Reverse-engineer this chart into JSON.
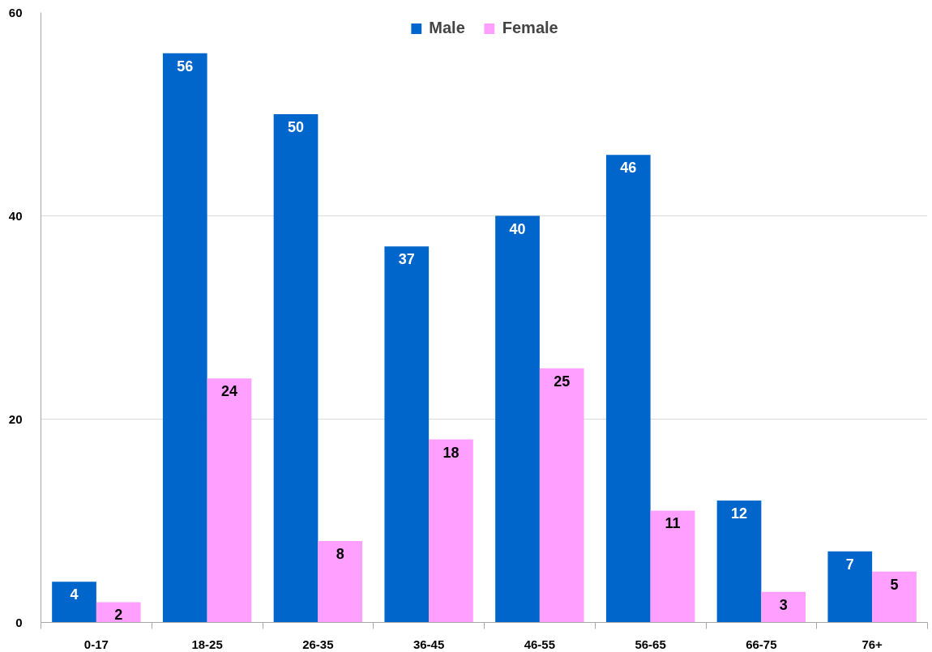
{
  "chart_data": {
    "type": "bar",
    "categories": [
      "0-17",
      "18-25",
      "26-35",
      "36-45",
      "46-55",
      "56-65",
      "66-75",
      "76+"
    ],
    "series": [
      {
        "name": "Male",
        "color": "#0066cc",
        "values": [
          4,
          56,
          50,
          37,
          40,
          46,
          12,
          7
        ]
      },
      {
        "name": "Female",
        "color": "#ff9fff",
        "values": [
          2,
          24,
          8,
          18,
          25,
          11,
          3,
          5
        ]
      }
    ],
    "ylim": [
      0,
      60
    ],
    "yticks": [
      0,
      20,
      40,
      60
    ],
    "grid": "y",
    "legend": "top",
    "data_labels": true
  }
}
